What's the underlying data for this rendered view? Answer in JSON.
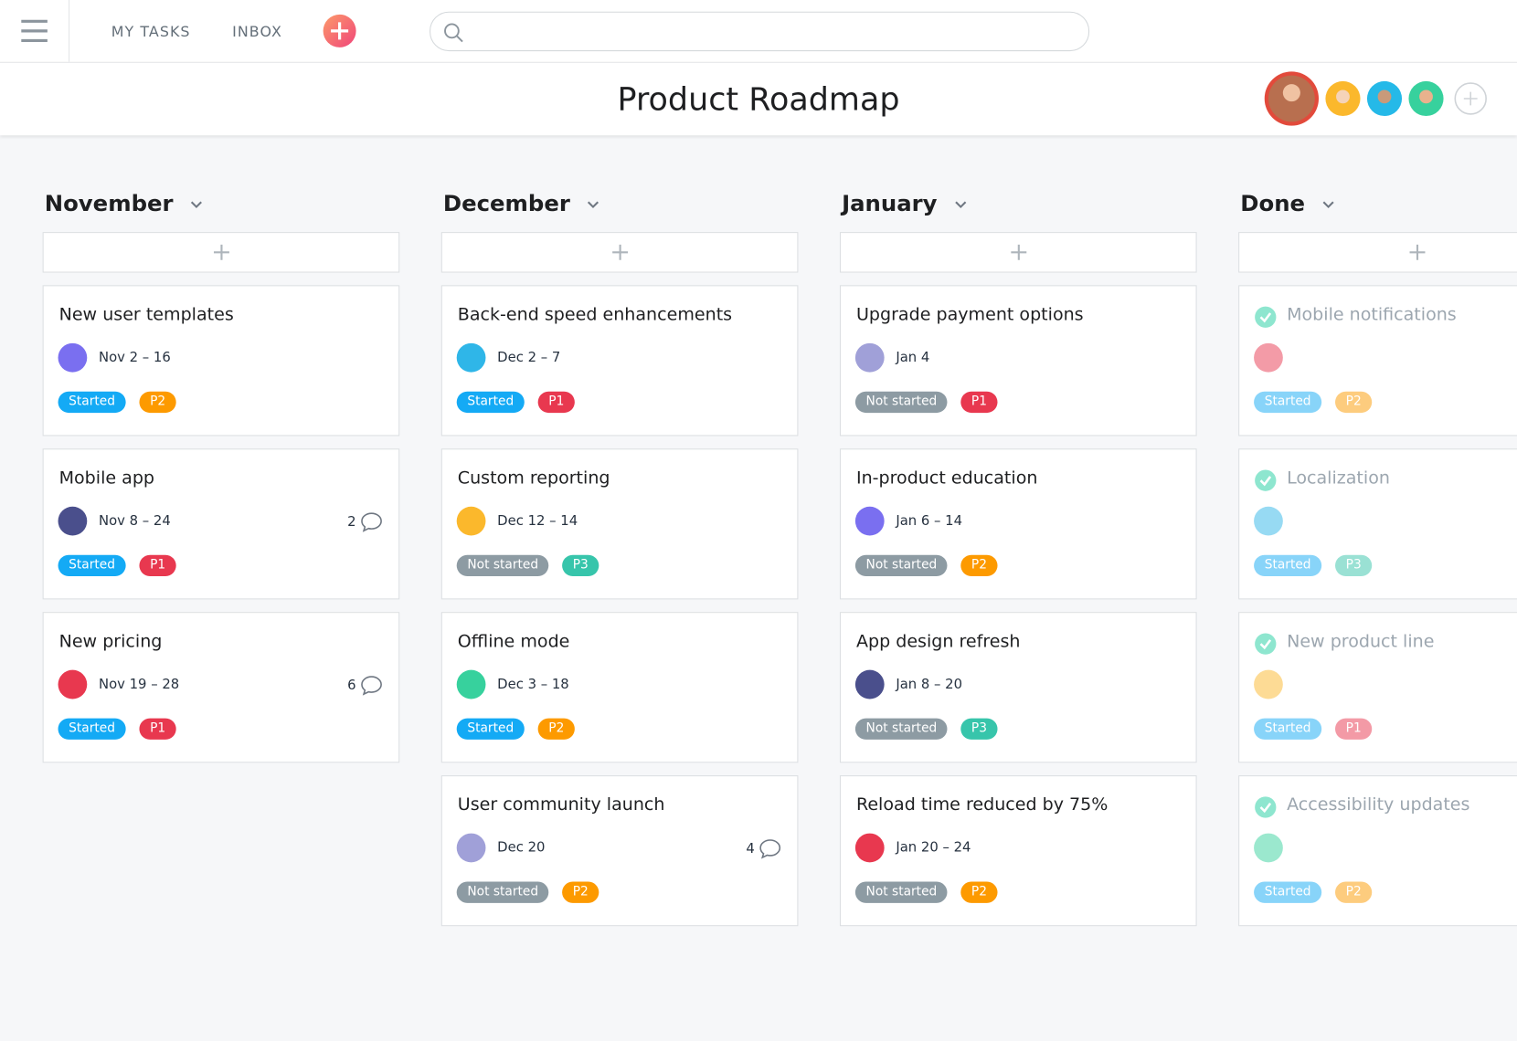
{
  "nav": {
    "items": [
      "MY TASKS",
      "INBOX"
    ]
  },
  "header": {
    "title": "Product Roadmap"
  },
  "columns": [
    {
      "name": "November",
      "cards": [
        {
          "title": "New user templates",
          "date": "Nov 2 – 16",
          "status": "Started",
          "priority": "P2"
        },
        {
          "title": "Mobile app",
          "date": "Nov 8 – 24",
          "status": "Started",
          "priority": "P1",
          "comments": "2"
        },
        {
          "title": "New pricing",
          "date": "Nov 19 – 28",
          "status": "Started",
          "priority": "P1",
          "comments": "6"
        }
      ]
    },
    {
      "name": "December",
      "cards": [
        {
          "title": "Back-end speed enhancements",
          "date": "Dec 2 – 7",
          "status": "Started",
          "priority": "P1"
        },
        {
          "title": "Custom reporting",
          "date": "Dec 12 – 14",
          "status": "Not started",
          "priority": "P3"
        },
        {
          "title": "Offline mode",
          "date": "Dec 3 – 18",
          "status": "Started",
          "priority": "P2"
        },
        {
          "title": "User community launch",
          "date": "Dec 20",
          "status": "Not started",
          "priority": "P2",
          "comments": "4"
        }
      ]
    },
    {
      "name": "January",
      "cards": [
        {
          "title": "Upgrade payment options",
          "date": "Jan 4",
          "status": "Not started",
          "priority": "P1"
        },
        {
          "title": "In-product education",
          "date": "Jan 6 – 14",
          "status": "Not started",
          "priority": "P2"
        },
        {
          "title": "App design refresh",
          "date": "Jan 8 – 20",
          "status": "Not started",
          "priority": "P3"
        },
        {
          "title": "Reload time reduced by 75%",
          "date": "Jan 20 – 24",
          "status": "Not started",
          "priority": "P2"
        }
      ]
    },
    {
      "name": "Done",
      "done": true,
      "cards": [
        {
          "title": "Mobile notifications",
          "status": "Started",
          "priority": "P2"
        },
        {
          "title": "Localization",
          "status": "Started",
          "priority": "P3"
        },
        {
          "title": "New product line",
          "status": "Started",
          "priority": "P1"
        },
        {
          "title": "Accessibility updates",
          "status": "Started",
          "priority": "P2"
        }
      ]
    }
  ]
}
